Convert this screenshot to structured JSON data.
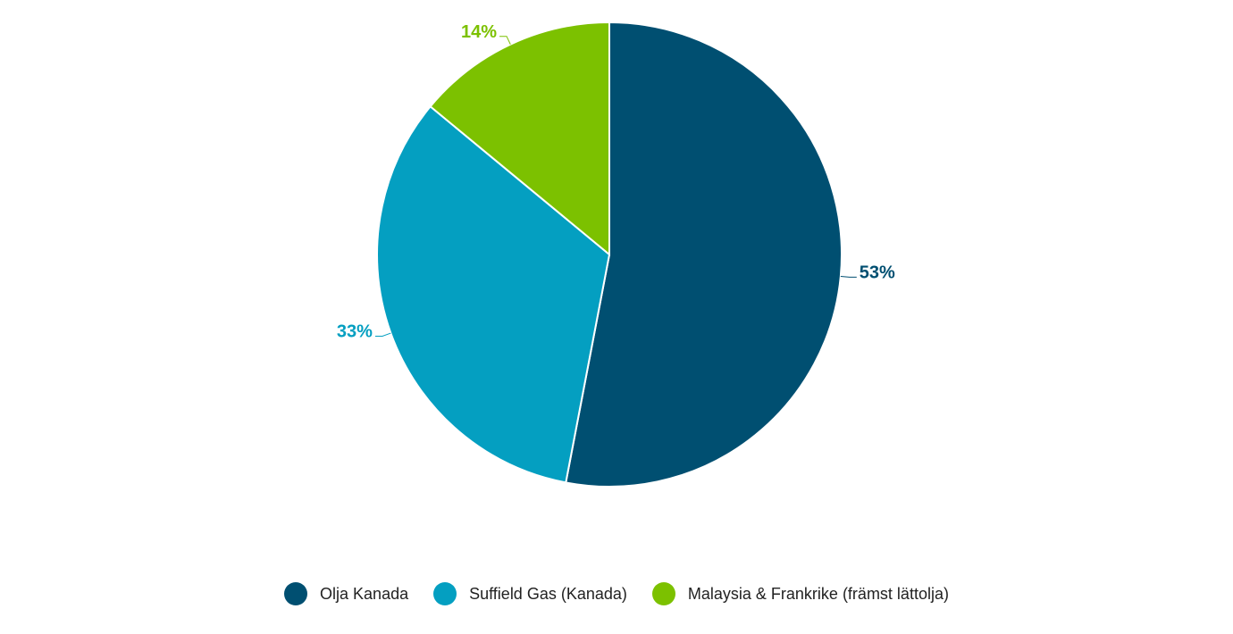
{
  "chart_data": {
    "type": "pie",
    "categories": [
      "Olja Kanada",
      "Suffield Gas (Kanada)",
      "Malaysia & Frankrike (främst lättolja)"
    ],
    "values": [
      53,
      33,
      14
    ],
    "value_labels": [
      "53%",
      "33%",
      "14%"
    ],
    "colors": [
      "#004f71",
      "#049fc1",
      "#7cc100"
    ]
  }
}
